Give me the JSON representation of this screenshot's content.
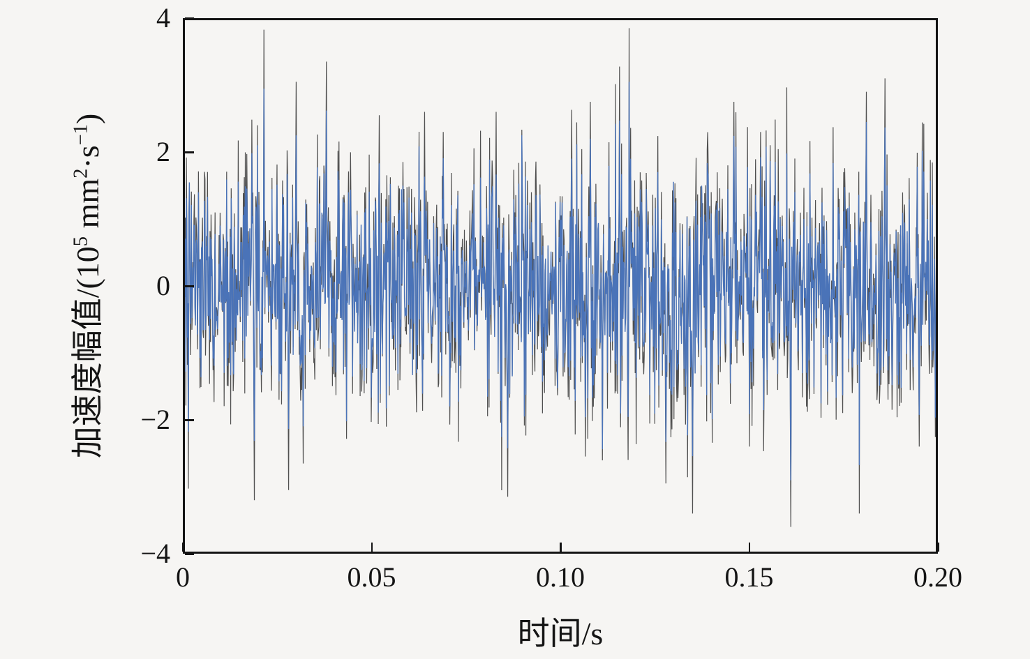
{
  "figure": {
    "background_color": "#f6f5f3",
    "axis_color": "#141414",
    "text_color": "#141414"
  },
  "chart_data": {
    "type": "line",
    "title": "",
    "xlabel": "时间/s",
    "ylabel": "加速度幅值/(10⁵ mm²·s⁻¹)",
    "ylabel_parts": {
      "p0": "加速度幅值/(10",
      "s0": "5",
      "p1": " mm",
      "s1": "2",
      "p2": "·s",
      "s2": "−1",
      "p3": ")"
    },
    "xlim": [
      0,
      0.2
    ],
    "ylim": [
      -4,
      4
    ],
    "xtick_values": [
      0,
      0.05,
      0.1,
      0.15,
      0.2
    ],
    "xtick_labels": [
      "0",
      "0.05",
      "0.10",
      "0.15",
      "0.20"
    ],
    "ytick_values": [
      -4,
      -2,
      0,
      2,
      4
    ],
    "ytick_labels": [
      "−4",
      "−2",
      "0",
      "2",
      "4"
    ],
    "grid": false,
    "frame": "box",
    "ticks_direction": "in",
    "legend": null,
    "series": [
      {
        "name": "raw-signal-gray",
        "color": "#4f4f4f",
        "stroke_width": 1.2,
        "sigma": 1.02,
        "role": "background-raw"
      },
      {
        "name": "overlay-signal-blue",
        "color": "#4a73b8",
        "stroke_width": 1.4,
        "scale": 0.78,
        "jitter": 0.16,
        "clamp": 3.05,
        "role": "foreground-overlay"
      }
    ],
    "signal": {
      "n": 1500,
      "seed": 987654321,
      "duration_s": 0.2,
      "mean": 0,
      "approx_std": 1.0,
      "observed_max": 3.35,
      "observed_min": -3.6,
      "tail_prob": 0.015,
      "tail_gain": 1.5,
      "notable_peaks": [
        {
          "t": 0.019,
          "v": -3.2
        },
        {
          "t": 0.028,
          "v": -3.05
        },
        {
          "t": 0.03,
          "v": 3.05
        },
        {
          "t": 0.038,
          "v": 3.35
        },
        {
          "t": 0.052,
          "v": 2.55
        },
        {
          "t": 0.064,
          "v": 2.6
        },
        {
          "t": 0.069,
          "v": 2.3
        },
        {
          "t": 0.083,
          "v": 2.6
        },
        {
          "t": 0.086,
          "v": -3.15
        },
        {
          "t": 0.103,
          "v": 2.63
        },
        {
          "t": 0.108,
          "v": 2.75
        },
        {
          "t": 0.118,
          "v": -2.6
        },
        {
          "t": 0.128,
          "v": -2.95
        },
        {
          "t": 0.135,
          "v": -3.4
        },
        {
          "t": 0.146,
          "v": 2.75
        },
        {
          "t": 0.153,
          "v": 2.3
        },
        {
          "t": 0.161,
          "v": -3.6
        },
        {
          "t": 0.181,
          "v": 2.9
        },
        {
          "t": 0.186,
          "v": 3.1
        },
        {
          "t": 0.195,
          "v": -2.4
        }
      ]
    }
  }
}
